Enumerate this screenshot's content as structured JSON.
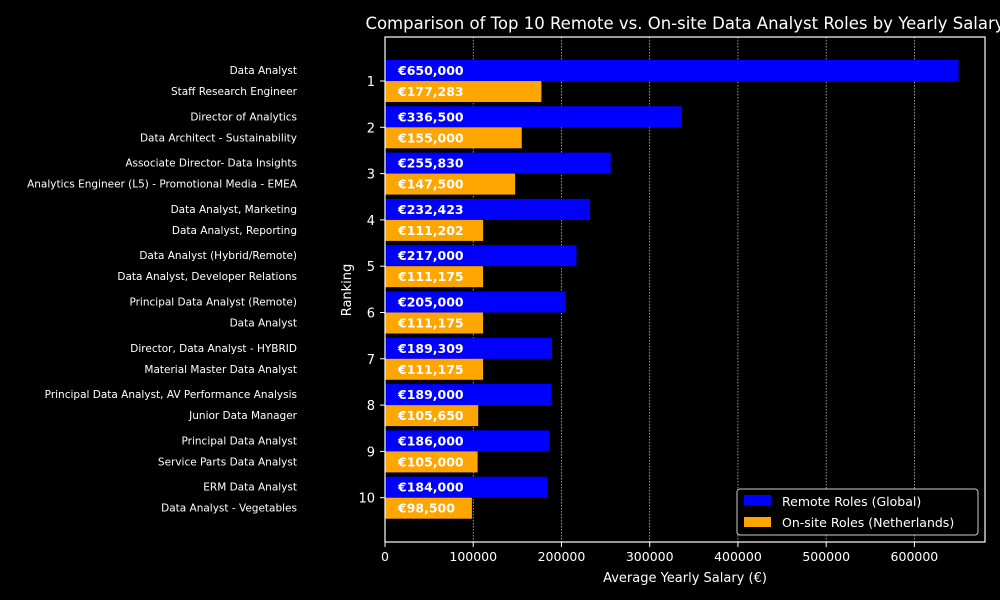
{
  "chart_data": {
    "type": "bar",
    "orientation": "horizontal",
    "title": "Comparison of Top 10 Remote vs. On-site Data Analyst Roles by Yearly Salary",
    "xlabel": "Average Yearly Salary (€)",
    "ylabel": "Ranking",
    "xlim": [
      0,
      680000
    ],
    "x_ticks": [
      "0",
      "100000",
      "200000",
      "300000",
      "400000",
      "500000",
      "600000"
    ],
    "categories": [
      "1",
      "2",
      "3",
      "4",
      "5",
      "6",
      "7",
      "8",
      "9",
      "10"
    ],
    "grid": "vertical dotted",
    "legend_position": "bottom-right",
    "series": [
      {
        "name": "Remote Roles (Global)",
        "color": "#0000ff",
        "values": [
          650000,
          336500,
          255830,
          232423,
          217000,
          205000,
          189309,
          189000,
          186000,
          184000
        ],
        "value_labels": [
          "€650,000",
          "€336,500",
          "€255,830",
          "€232,423",
          "€217,000",
          "€205,000",
          "€189,309",
          "€189,000",
          "€186,000",
          "€184,000"
        ],
        "job_titles": [
          "Data Analyst",
          "Director of Analytics",
          "Associate Director- Data Insights",
          "Data Analyst, Marketing",
          "Data Analyst (Hybrid/Remote)",
          "Principal Data Analyst (Remote)",
          "Director, Data Analyst - HYBRID",
          "Principal Data Analyst, AV Performance Analysis",
          "Principal Data Analyst",
          "ERM Data Analyst"
        ]
      },
      {
        "name": "On-site Roles (Netherlands)",
        "color": "#ffa500",
        "values": [
          177283,
          155000,
          147500,
          111202,
          111175,
          111175,
          111175,
          105650,
          105000,
          98500
        ],
        "value_labels": [
          "€177,283",
          "€155,000",
          "€147,500",
          "€111,202",
          "€111,175",
          "€111,175",
          "€111,175",
          "€105,650",
          "€105,000",
          "€98,500"
        ],
        "job_titles": [
          "Staff Research Engineer",
          "Data Architect - Sustainability",
          "Analytics Engineer (L5) - Promotional Media - EMEA",
          "Data Analyst, Reporting",
          "Data Analyst, Developer Relations",
          "Data Analyst",
          "Material Master Data Analyst",
          "Junior Data Manager",
          "Service Parts Data Analyst",
          "Data Analyst - Vegetables"
        ]
      }
    ]
  }
}
